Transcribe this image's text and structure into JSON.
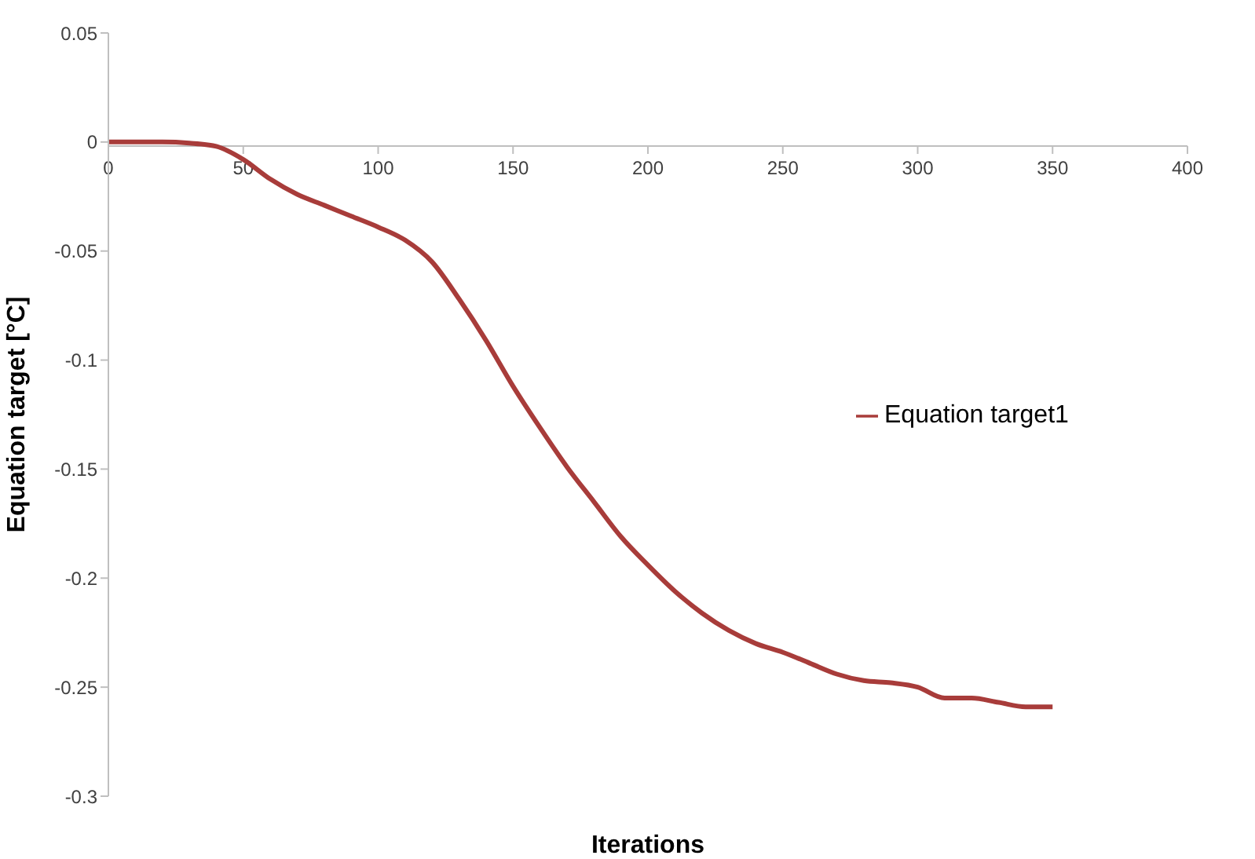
{
  "chart_data": {
    "type": "line",
    "xlabel": "Iterations",
    "ylabel": "Equation target [°C]",
    "x": [
      0,
      20,
      30,
      40,
      50,
      60,
      70,
      80,
      90,
      100,
      110,
      120,
      130,
      140,
      150,
      160,
      170,
      180,
      190,
      200,
      210,
      220,
      230,
      240,
      250,
      260,
      270,
      280,
      290,
      300,
      310,
      320,
      330,
      340,
      350
    ],
    "series": [
      {
        "name": "Equation target1",
        "color": "#a83c3a",
        "values": [
          0,
          0,
          -0.0005,
          -0.002,
          -0.008,
          -0.017,
          -0.024,
          -0.029,
          -0.034,
          -0.039,
          -0.045,
          -0.055,
          -0.072,
          -0.091,
          -0.112,
          -0.131,
          -0.149,
          -0.165,
          -0.181,
          -0.194,
          -0.206,
          -0.216,
          -0.224,
          -0.23,
          -0.234,
          -0.239,
          -0.244,
          -0.247,
          -0.248,
          -0.25,
          -0.255,
          -0.255,
          -0.257,
          -0.259,
          -0.259
        ]
      }
    ],
    "xlim": [
      0,
      400
    ],
    "xticks": [
      0,
      50,
      100,
      150,
      200,
      250,
      300,
      350,
      400
    ],
    "ylim": [
      -0.3,
      0.05
    ],
    "yticks": [
      -0.3,
      -0.25,
      -0.2,
      -0.15,
      -0.1,
      -0.05,
      0,
      0.05
    ],
    "grid": false,
    "legend": "right",
    "marker": "none",
    "line_style": "solid"
  }
}
